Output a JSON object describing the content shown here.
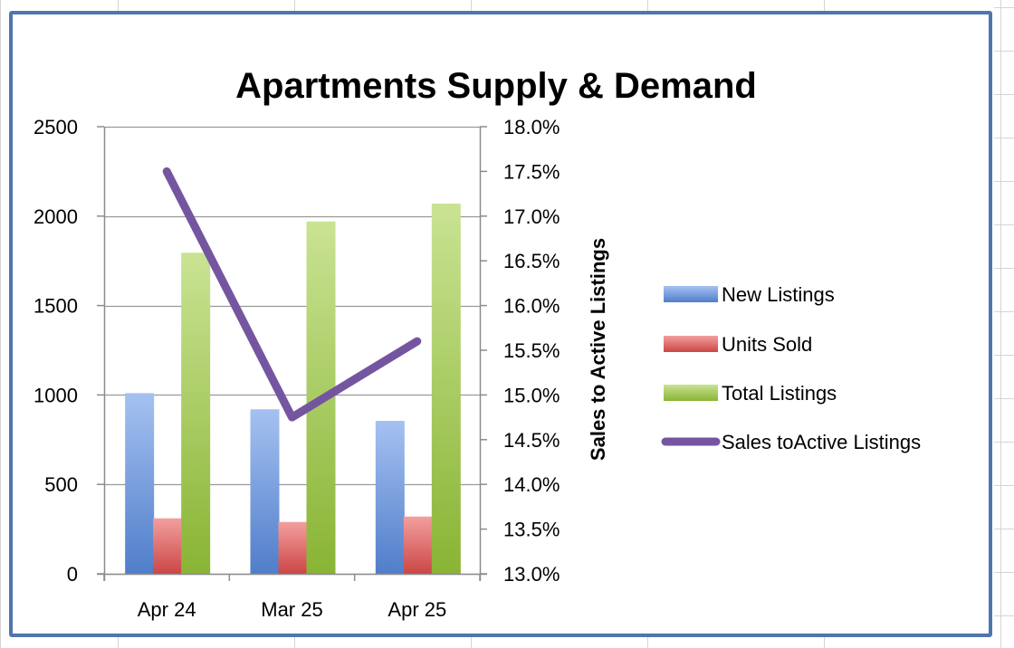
{
  "colors": {
    "new_listings": "#5b8fe6",
    "units_sold": "#e8504f",
    "total_listings": "#9ccc3b",
    "sales_ratio": "#7456a0",
    "frame": "#4f76ad",
    "gridline": "#999999"
  },
  "chart_data": {
    "type": "bar",
    "title": "Apartments Supply & Demand",
    "categories": [
      "Apr 24",
      "Mar 25",
      "Apr 25"
    ],
    "y_left": {
      "ticks": [
        "0",
        "500",
        "1000",
        "1500",
        "2000",
        "2500"
      ],
      "min": 0,
      "max": 2500
    },
    "y_right": {
      "label": "Sales to Active Listings",
      "ticks": [
        "13.0%",
        "13.5%",
        "14.0%",
        "14.5%",
        "15.0%",
        "15.5%",
        "16.0%",
        "16.5%",
        "17.0%",
        "17.5%",
        "18.0%"
      ],
      "min": 13.0,
      "max": 18.0
    },
    "grid": true,
    "legend_position": "right",
    "series": [
      {
        "name": "New Listings",
        "type": "bar",
        "axis": "left",
        "color_key": "new_listings",
        "values": [
          1010,
          920,
          855
        ]
      },
      {
        "name": "Units Sold",
        "type": "bar",
        "axis": "left",
        "color_key": "units_sold",
        "values": [
          310,
          290,
          320
        ]
      },
      {
        "name": "Total Listings",
        "type": "bar",
        "axis": "left",
        "color_key": "total_listings",
        "values": [
          1795,
          1970,
          2070
        ]
      },
      {
        "name": "Sales toActive Listings",
        "type": "line",
        "axis": "right",
        "color_key": "sales_ratio",
        "values": [
          17.5,
          14.75,
          15.6
        ]
      }
    ]
  }
}
